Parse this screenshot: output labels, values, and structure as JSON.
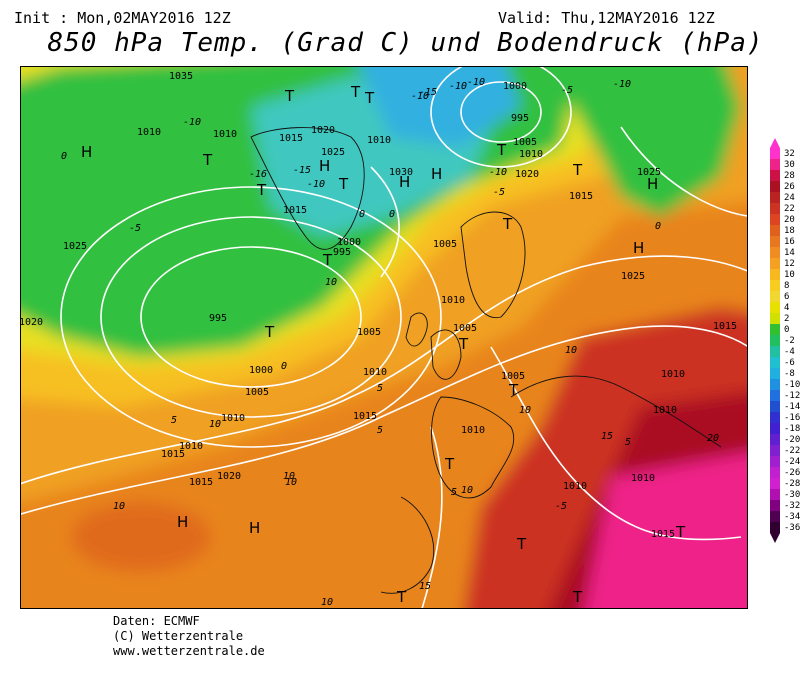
{
  "header": {
    "init": "Init : Mon,02MAY2016 12Z",
    "valid": "Valid: Thu,12MAY2016 12Z",
    "title": "850 hPa Temp. (Grad C) und Bodendruck (hPa)"
  },
  "credits": [
    "Daten: ECMWF",
    "(C) Wetterzentrale",
    "www.wetterzentrale.de"
  ],
  "colorbar": {
    "ticks": [
      "32",
      "30",
      "28",
      "26",
      "24",
      "22",
      "20",
      "18",
      "16",
      "14",
      "12",
      "10",
      "8",
      "6",
      "4",
      "2",
      "0",
      "-2",
      "-4",
      "-6",
      "-8",
      "-10",
      "-12",
      "-14",
      "-16",
      "-18",
      "-20",
      "-22",
      "-24",
      "-26",
      "-28",
      "-30",
      "-32",
      "-34",
      "-36"
    ],
    "colors": [
      "#ff33cc",
      "#ee2288",
      "#cc1144",
      "#aa1122",
      "#bb2222",
      "#cc3322",
      "#dd4422",
      "#e0601e",
      "#e87820",
      "#f08c22",
      "#f5a022",
      "#f7b820",
      "#f8cc20",
      "#f0d830",
      "#e8e000",
      "#d0e000",
      "#30c030",
      "#20c060",
      "#20c0a0",
      "#20c0d0",
      "#20b0e0",
      "#2090e0",
      "#2070e0",
      "#2050d0",
      "#3030d0",
      "#4020d0",
      "#6020d0",
      "#8020d0",
      "#a020d0",
      "#c020d0",
      "#d020d0",
      "#b010b0",
      "#800080",
      "#500050",
      "#300030"
    ]
  },
  "map": {
    "pressure_labels": [
      "1035",
      "1020",
      "1010",
      "1015",
      "1025",
      "1030",
      "1010",
      "1000",
      "995",
      "1005",
      "1010",
      "1020",
      "1015",
      "1025",
      "1025",
      "1010",
      "1015",
      "1000",
      "995",
      "995",
      "1000",
      "1005",
      "1010",
      "1005",
      "1015",
      "1010",
      "1020",
      "1010",
      "1005",
      "1010",
      "1025",
      "1005",
      "1015",
      "1015",
      "1010",
      "1020",
      "1015",
      "1010",
      "1010",
      "1005",
      "1010",
      "1010",
      "1015"
    ],
    "temperature_labels": [
      "-10",
      "-15",
      "-10",
      "-5",
      "-10",
      "-10",
      "-16",
      "-15",
      "-10",
      "-5",
      "-5",
      "-10",
      "-10",
      "0",
      "0",
      "0",
      "0",
      "0",
      "5",
      "5",
      "5",
      "10",
      "10",
      "10",
      "10",
      "10",
      "10",
      "15",
      "15",
      "10",
      "-5",
      "5",
      "10",
      "20",
      "5",
      "10"
    ],
    "systems": {
      "highs": [
        "H",
        "H",
        "H",
        "H",
        "H",
        "H",
        "H",
        "H"
      ],
      "lows": [
        "T",
        "T",
        "T",
        "T",
        "T",
        "T",
        "T",
        "T",
        "T",
        "T",
        "T",
        "T",
        "T",
        "T",
        "T",
        "T",
        "T",
        "T"
      ]
    }
  }
}
